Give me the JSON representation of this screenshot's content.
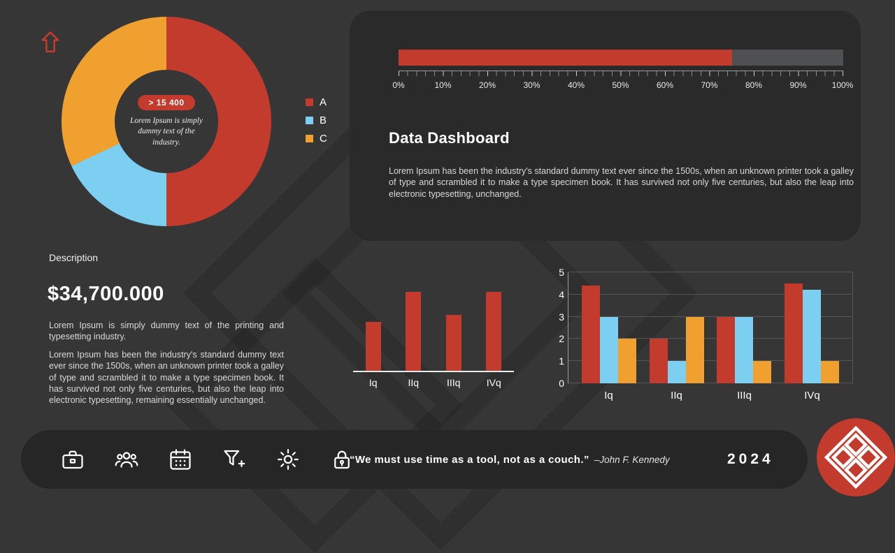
{
  "colors": {
    "red": "#c23b2c",
    "blue": "#7dcff1",
    "orange": "#efa02f",
    "background": "#363636",
    "panel": "#2a2a2a",
    "footer": "#262626",
    "progress_track": "#4f5052"
  },
  "donut": {
    "badge": "> 15 400",
    "center_text": "Lorem Ipsum is simply dummy text of the industry.",
    "legend": [
      {
        "label": "A",
        "color": "#c23b2c"
      },
      {
        "label": "B",
        "color": "#7dcff1"
      },
      {
        "label": "C",
        "color": "#efa02f"
      }
    ]
  },
  "panel": {
    "title": "Data Dashboard",
    "body": "Lorem Ipsum has been the industry's standard dummy text ever since the 1500s, when an unknown printer took a galley of type and scrambled it to make a type specimen book. It has survived not only five centuries, but also the leap into electronic typesetting, unchanged.",
    "progress_pct": 75,
    "scale": [
      "0%",
      "10%",
      "20%",
      "30%",
      "40%",
      "50%",
      "60%",
      "70%",
      "80%",
      "90%",
      "100%"
    ]
  },
  "description": {
    "label": "Description",
    "amount": "$34,700.000",
    "para1": "Lorem Ipsum is simply dummy text of the printing and typesetting industry.",
    "para2": "Lorem Ipsum has been the industry's standard dummy text ever since the 1500s, when an unknown printer took a galley of type and scrambled it to make a type specimen book. It has survived not only five centuries, but also the leap into electronic typesetting, remaining essentially unchanged."
  },
  "footer": {
    "icons": [
      "briefcase-icon",
      "users-icon",
      "calendar-icon",
      "funnel-add-icon",
      "gear-icon",
      "lock-icon"
    ],
    "quote": "“We must use time as a tool, not as a couch.”",
    "quote_attribution": "–John F. Kennedy",
    "year": "2024"
  },
  "chart_data": [
    {
      "type": "pie",
      "subtype": "donut",
      "labels": [
        "A",
        "B",
        "C"
      ],
      "values_pct": [
        50,
        18,
        32
      ],
      "colors": [
        "#c23b2c",
        "#7dcff1",
        "#efa02f"
      ],
      "center_badge": "> 15 400",
      "center_text": "Lorem Ipsum is simply dummy text of the industry.",
      "legend_position": "right"
    },
    {
      "type": "bar",
      "categories": [
        "Iq",
        "IIq",
        "IIIq",
        "IVq"
      ],
      "values": [
        2.8,
        4.5,
        3.2,
        4.5
      ],
      "ymax": 4.5,
      "color": "#c23b2c",
      "title": "",
      "xlabel": "",
      "ylabel": ""
    },
    {
      "type": "bar",
      "categories": [
        "Iq",
        "IIq",
        "IIIq",
        "IVq"
      ],
      "series": [
        {
          "name": "red",
          "color": "#c23b2c",
          "values": [
            4.4,
            2,
            3,
            4.5
          ]
        },
        {
          "name": "blue",
          "color": "#7dcff1",
          "values": [
            3,
            1,
            3,
            4.2
          ]
        },
        {
          "name": "orange",
          "color": "#efa02f",
          "values": [
            2,
            3,
            1,
            1
          ]
        }
      ],
      "ylim": [
        0,
        5
      ],
      "yticks": [
        0,
        1,
        2,
        3,
        4,
        5
      ],
      "grid": true,
      "title": "",
      "xlabel": "",
      "ylabel": ""
    }
  ]
}
